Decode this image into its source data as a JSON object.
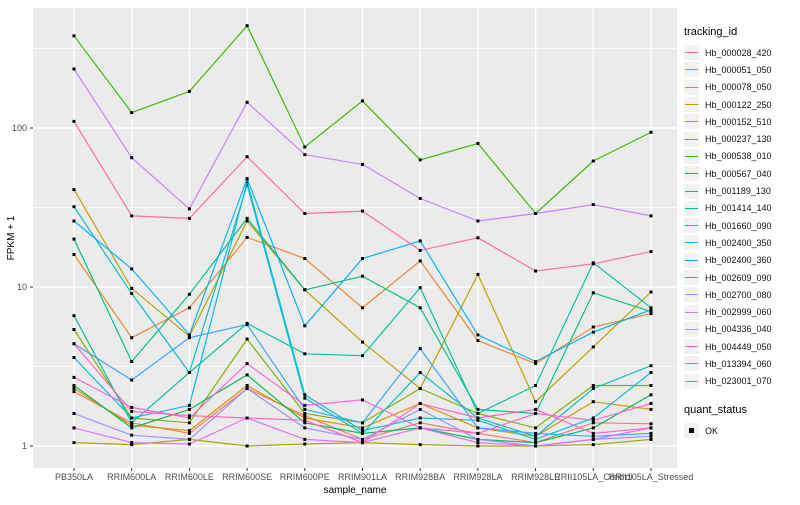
{
  "chart_data": {
    "type": "line",
    "title": "",
    "xlabel": "sample_name",
    "ylabel": "FPKM + 1",
    "y_scale": "log10",
    "y_ticks": [
      1,
      10,
      100
    ],
    "y_tick_labels": [
      "1",
      "10",
      "100"
    ],
    "y_minor_ticks": [
      3.162,
      31.62,
      316.2
    ],
    "ylim": [
      1,
      570
    ],
    "grid": "on",
    "legend_position": "right",
    "panel_color": "#EBEBEB",
    "grid_color": "#FFFFFF",
    "tick_text_color": "#4D4D4D",
    "x_categories": [
      "PB350LA",
      "RRIM600LA",
      "RRIM600LE",
      "RRIM600SE",
      "RRIM600PE",
      "RRIM901LA",
      "RRIM928BA",
      "RRIM928LA",
      "RRIM928LE",
      "RRII105LA_Control",
      "RRII105LA_Stressed"
    ],
    "series": [
      {
        "name": "Hb_000028_420",
        "color": "#F8766D",
        "values": [
          2.2,
          1.4,
          1.2,
          2.3,
          1.55,
          1.1,
          1.4,
          1.2,
          1.05,
          1.4,
          1.38
        ]
      },
      {
        "name": "Hb_000051_050",
        "color": "#EA8331",
        "values": [
          16,
          4.8,
          7.4,
          20.5,
          15.1,
          7.4,
          14.6,
          4.6,
          3.3,
          5.6,
          6.8
        ]
      },
      {
        "name": "Hb_000078_050",
        "color": "#D89000",
        "values": [
          2.3,
          1.35,
          1.25,
          2.4,
          1.5,
          1.3,
          1.85,
          1.3,
          1.15,
          1.9,
          1.7
        ]
      },
      {
        "name": "Hb_000122_250",
        "color": "#C09B00",
        "values": [
          41,
          9.8,
          4.9,
          26,
          9.6,
          4.5,
          2.3,
          12,
          1.9,
          4.2,
          9.3
        ]
      },
      {
        "name": "Hb_000152_510",
        "color": "#A3A500",
        "values": [
          1.05,
          1.02,
          1.1,
          1.0,
          1.03,
          1.05,
          1.02,
          1.0,
          1.0,
          1.02,
          1.1
        ]
      },
      {
        "name": "Hb_000237_130",
        "color": "#7CAE00",
        "values": [
          5.4,
          1.5,
          1.4,
          4.7,
          1.6,
          1.4,
          2.3,
          1.6,
          1.3,
          2.4,
          2.4
        ]
      },
      {
        "name": "Hb_000538_010",
        "color": "#39B600",
        "values": [
          380,
          125,
          170,
          440,
          76,
          148,
          63,
          80,
          29,
          62,
          94
        ]
      },
      {
        "name": "Hb_000567_040",
        "color": "#00BB4E",
        "values": [
          2.4,
          1.3,
          1.7,
          2.8,
          1.4,
          1.2,
          1.3,
          1.1,
          1.05,
          1.3,
          2.1
        ]
      },
      {
        "name": "Hb_001189_130",
        "color": "#00BF7D",
        "values": [
          20,
          3.4,
          9.0,
          27,
          9.6,
          11.7,
          7.4,
          1.7,
          1.6,
          9.2,
          7.0
        ]
      },
      {
        "name": "Hb_001414_140",
        "color": "#00C1A3",
        "values": [
          6.6,
          1.4,
          2.9,
          5.9,
          3.8,
          3.7,
          9.9,
          1.6,
          2.4,
          14.2,
          7.4
        ]
      },
      {
        "name": "Hb_001660_090",
        "color": "#00BFC4",
        "values": [
          32,
          9.1,
          2.9,
          44,
          2.0,
          1.2,
          2.9,
          1.5,
          1.15,
          2.3,
          3.2
        ]
      },
      {
        "name": "Hb_002400_350",
        "color": "#00BAE0",
        "values": [
          3.6,
          1.5,
          1.8,
          46,
          2.1,
          1.25,
          1.5,
          1.45,
          1.1,
          1.5,
          2.9
        ]
      },
      {
        "name": "Hb_002400_360",
        "color": "#00B0F6",
        "values": [
          26,
          13,
          5.0,
          48,
          5.7,
          15.1,
          19.5,
          5.0,
          3.4,
          5.2,
          7.2
        ]
      },
      {
        "name": "Hb_002609_090",
        "color": "#35A2FF",
        "values": [
          4.4,
          2.6,
          4.8,
          5.8,
          1.7,
          1.4,
          4.1,
          1.3,
          1.2,
          1.15,
          1.2
        ]
      },
      {
        "name": "Hb_002700_080",
        "color": "#9590FF",
        "values": [
          1.6,
          1.17,
          1.1,
          2.3,
          1.3,
          1.1,
          1.7,
          1.1,
          1.0,
          1.1,
          1.15
        ]
      },
      {
        "name": "Hb_002999_060",
        "color": "#C77CFF",
        "values": [
          235,
          65,
          31,
          145,
          68,
          59,
          36,
          26,
          29,
          33,
          28
        ]
      },
      {
        "name": "Hb_004336_040",
        "color": "#E76BF3",
        "values": [
          1.3,
          1.05,
          1.03,
          1.5,
          1.1,
          1.05,
          1.3,
          1.05,
          1.0,
          1.1,
          1.3
        ]
      },
      {
        "name": "Hb_004449_050",
        "color": "#FA62DB",
        "values": [
          2.7,
          1.75,
          1.5,
          3.3,
          1.8,
          1.95,
          1.3,
          1.2,
          1.6,
          1.45,
          1.85
        ]
      },
      {
        "name": "Hb_013394_060",
        "color": "#FF62BC",
        "values": [
          4.4,
          1.65,
          1.55,
          1.5,
          1.45,
          1.05,
          1.85,
          1.5,
          1.7,
          1.2,
          1.3
        ]
      },
      {
        "name": "Hb_023001_070",
        "color": "#FF6A98",
        "values": [
          110,
          28,
          27,
          66,
          29,
          30,
          17,
          20.4,
          12.6,
          14,
          16.7
        ]
      }
    ],
    "marker": {
      "shape": "square",
      "color": "#000000"
    }
  },
  "legend": {
    "tracking_title": "tracking_id",
    "quant_title": "quant_status",
    "quant_items": [
      {
        "label": "OK"
      }
    ]
  },
  "axes": {
    "x_title": "sample_name",
    "y_title": "FPKM + 1"
  }
}
